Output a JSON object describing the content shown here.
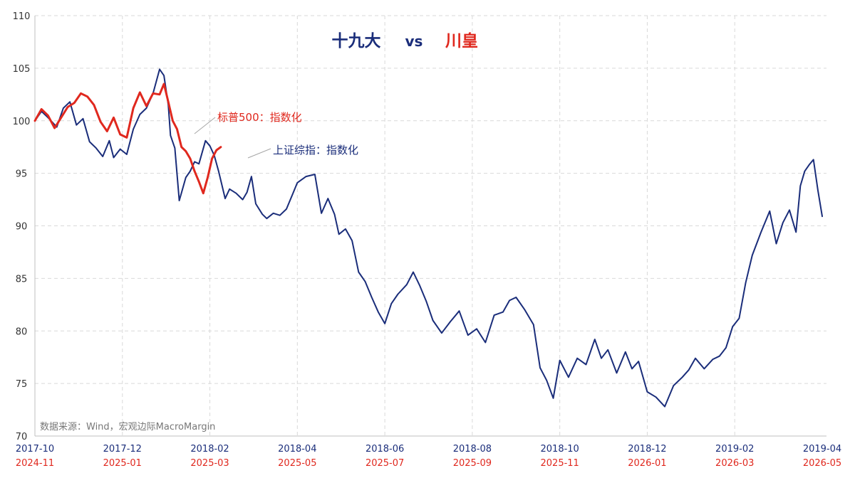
{
  "chart_data": {
    "type": "line",
    "title": {
      "left": "十九大",
      "vs": "vs",
      "right": "川皇",
      "left_color": "#1a2d7a",
      "right_color": "#e0281e"
    },
    "ylim": [
      70,
      110
    ],
    "yticks": [
      70,
      75,
      80,
      85,
      90,
      95,
      100,
      105,
      110
    ],
    "grid": true,
    "x_domain": [
      0,
      18
    ],
    "xticks_top": [
      "2017-10",
      "2017-12",
      "2018-02",
      "2018-04",
      "2018-06",
      "2018-08",
      "2018-10",
      "2018-12",
      "2019-02",
      "2019-04"
    ],
    "xticks_bottom": [
      "2024-11",
      "2025-01",
      "2025-03",
      "2025-05",
      "2025-07",
      "2025-09",
      "2025-11",
      "2026-01",
      "2026-03",
      "2026-05"
    ],
    "source_note": "数据来源：Wind，宏观边际MacroMargin",
    "series": [
      {
        "name": "上证综指：指数化",
        "color": "#1a2d7a",
        "x": [
          0,
          0.15,
          0.3,
          0.5,
          0.65,
          0.8,
          0.95,
          1.1,
          1.25,
          1.4,
          1.55,
          1.7,
          1.8,
          1.95,
          2.1,
          2.25,
          2.4,
          2.55,
          2.7,
          2.85,
          2.95,
          3.05,
          3.1,
          3.2,
          3.3,
          3.45,
          3.55,
          3.65,
          3.75,
          3.9,
          4.0,
          4.1,
          4.2,
          4.35,
          4.45,
          4.6,
          4.75,
          4.85,
          4.95,
          5.05,
          5.2,
          5.3,
          5.45,
          5.6,
          5.75,
          5.9,
          6.0,
          6.2,
          6.4,
          6.55,
          6.7,
          6.85,
          6.95,
          7.1,
          7.25,
          7.4,
          7.55,
          7.7,
          7.85,
          8.0,
          8.15,
          8.3,
          8.5,
          8.65,
          8.8,
          8.95,
          9.1,
          9.3,
          9.5,
          9.7,
          9.9,
          10.1,
          10.3,
          10.5,
          10.7,
          10.85,
          11.0,
          11.2,
          11.4,
          11.55,
          11.7,
          11.85,
          12.0,
          12.2,
          12.4,
          12.6,
          12.8,
          12.95,
          13.1,
          13.3,
          13.5,
          13.65,
          13.8,
          14.0,
          14.2,
          14.4,
          14.6,
          14.8,
          14.95,
          15.1,
          15.3,
          15.5,
          15.65,
          15.8,
          15.95,
          16.1,
          16.25,
          16.4,
          16.6,
          16.8,
          16.95,
          17.1,
          17.25,
          17.4,
          17.5,
          17.6,
          17.7,
          17.8,
          17.9,
          18.0
        ],
        "y": [
          100.0,
          100.9,
          100.3,
          99.4,
          101.2,
          101.8,
          99.6,
          100.2,
          98.0,
          97.4,
          96.6,
          98.1,
          96.5,
          97.3,
          96.8,
          99.2,
          100.6,
          101.2,
          102.6,
          104.9,
          104.3,
          101.5,
          98.6,
          97.4,
          92.4,
          94.6,
          95.2,
          96.1,
          95.9,
          98.1,
          97.6,
          96.7,
          95.2,
          92.6,
          93.5,
          93.1,
          92.5,
          93.2,
          94.7,
          92.1,
          91.1,
          90.7,
          91.2,
          91.0,
          91.6,
          93.1,
          94.1,
          94.7,
          94.9,
          91.2,
          92.6,
          91.1,
          89.2,
          89.7,
          88.6,
          85.6,
          84.7,
          83.2,
          81.8,
          80.7,
          82.6,
          83.5,
          84.4,
          85.6,
          84.3,
          82.8,
          81.0,
          79.8,
          80.9,
          81.9,
          79.6,
          80.2,
          78.9,
          81.5,
          81.8,
          82.9,
          83.2,
          82.0,
          80.6,
          76.5,
          75.3,
          73.6,
          77.2,
          75.6,
          77.4,
          76.8,
          79.2,
          77.4,
          78.2,
          76.0,
          78.0,
          76.4,
          77.1,
          74.2,
          73.7,
          72.8,
          74.8,
          75.6,
          76.3,
          77.4,
          76.4,
          77.3,
          77.6,
          78.4,
          80.4,
          81.2,
          84.6,
          87.2,
          89.4,
          91.4,
          88.3,
          90.3,
          91.5,
          89.4,
          93.8,
          95.2,
          95.8,
          96.3,
          93.4,
          90.9
        ]
      },
      {
        "name": "标普500：指数化",
        "color": "#e0281e",
        "x": [
          0,
          0.15,
          0.3,
          0.45,
          0.6,
          0.75,
          0.9,
          1.05,
          1.2,
          1.35,
          1.5,
          1.65,
          1.8,
          1.95,
          2.1,
          2.25,
          2.4,
          2.55,
          2.7,
          2.85,
          2.95,
          3.05,
          3.15,
          3.25,
          3.35,
          3.45,
          3.55,
          3.65,
          3.75,
          3.85,
          3.95,
          4.05,
          4.15,
          4.25
        ],
        "y": [
          100.0,
          101.1,
          100.5,
          99.3,
          100.3,
          101.3,
          101.7,
          102.6,
          102.3,
          101.5,
          99.9,
          99.0,
          100.3,
          98.7,
          98.4,
          101.2,
          102.7,
          101.4,
          102.6,
          102.5,
          103.5,
          101.8,
          100.0,
          99.2,
          97.5,
          97.1,
          96.4,
          95.2,
          94.2,
          93.1,
          94.6,
          96.4,
          97.2,
          97.5
        ]
      }
    ],
    "annotations": [
      {
        "text": "标普500：指数化",
        "color": "#e0281e"
      },
      {
        "text": "上证综指：指数化",
        "color": "#1a2d7a"
      }
    ]
  }
}
